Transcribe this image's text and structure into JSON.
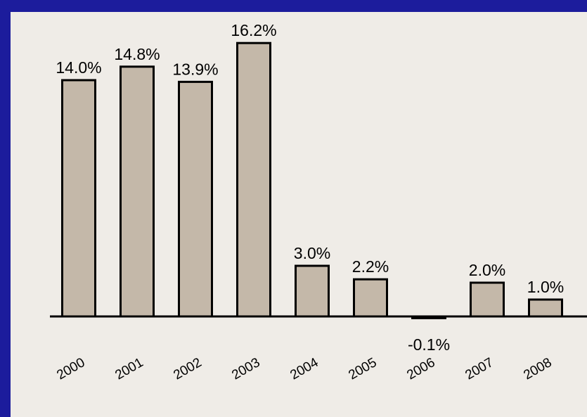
{
  "chart_data": {
    "type": "bar",
    "categories": [
      "2000",
      "2001",
      "2002",
      "2003",
      "2004",
      "2005",
      "2006",
      "2007",
      "2008"
    ],
    "values": [
      14.0,
      14.8,
      13.9,
      16.2,
      3.0,
      2.2,
      -0.1,
      2.0,
      1.0
    ],
    "data_labels": [
      "14.0%",
      "14.8%",
      "13.9%",
      "16.2%",
      "3.0%",
      "2.2%",
      "-0.1%",
      "2.0%",
      "1.0%"
    ],
    "title": "",
    "xlabel": "",
    "ylabel": "",
    "ylim": [
      -0.1,
      16.2
    ],
    "grid": false,
    "colors": {
      "frame": "#1c1c9c",
      "plot_background": "#efece7",
      "bar_fill": "#c4b8a9",
      "bar_outline": "#000000"
    }
  }
}
